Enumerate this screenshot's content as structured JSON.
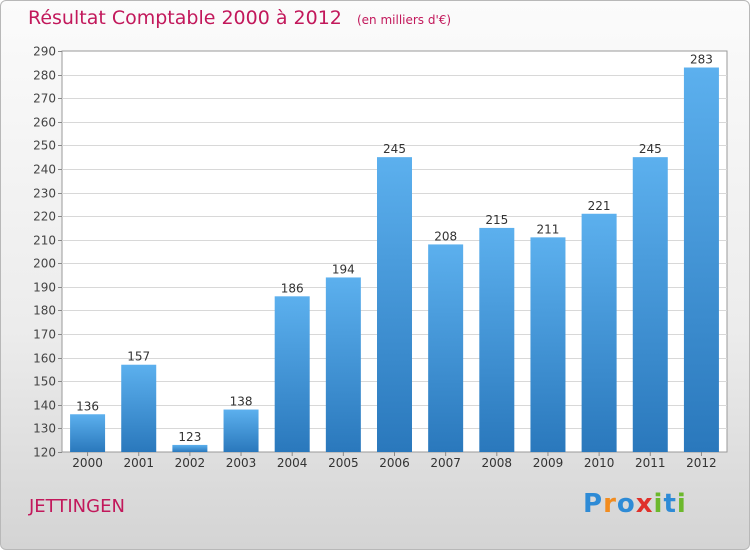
{
  "title": "Résultat Comptable 2000 à 2012",
  "subtitle": "(en milliers d'€)",
  "town": "JETTINGEN",
  "logo": {
    "text": "Proxiti",
    "colors": [
      "#2e8bd6",
      "#f28c1e",
      "#2e8bd6",
      "#e0302a",
      "#6cb82c",
      "#2e8bd6",
      "#6cb82c"
    ]
  },
  "chart_data": {
    "type": "bar",
    "title": "Résultat Comptable 2000 à 2012",
    "subtitle": "(en milliers d'€)",
    "categories": [
      "2000",
      "2001",
      "2002",
      "2003",
      "2004",
      "2005",
      "2006",
      "2007",
      "2008",
      "2009",
      "2010",
      "2011",
      "2012"
    ],
    "values": [
      136,
      157,
      123,
      138,
      186,
      194,
      245,
      208,
      215,
      211,
      221,
      245,
      283
    ],
    "ylim": [
      120,
      290
    ],
    "yticks": [
      120,
      130,
      140,
      150,
      160,
      170,
      180,
      190,
      200,
      210,
      220,
      230,
      240,
      250,
      260,
      270,
      280,
      290
    ],
    "grid": true,
    "bar_color": "#3d93d8"
  }
}
